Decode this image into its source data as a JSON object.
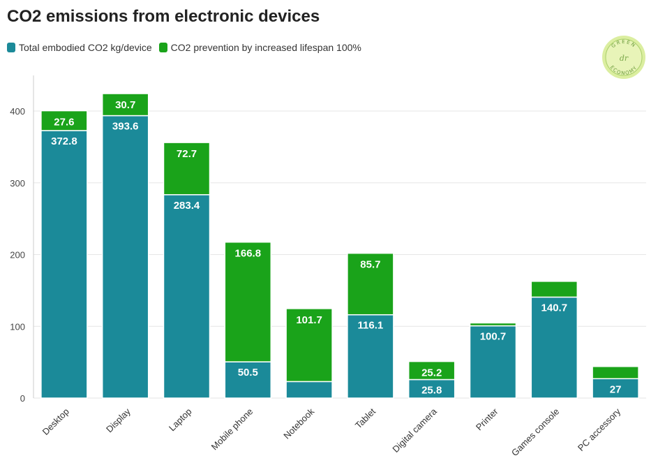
{
  "chart_data": {
    "type": "bar",
    "stacked": true,
    "title": "CO2 emissions from electronic devices",
    "categories": [
      "Desktop",
      "Display",
      "Laptop",
      "Mobile phone",
      "Notebook",
      "Tablet",
      "Digital camera",
      "Printer",
      "Games console",
      "PC accessory"
    ],
    "series": [
      {
        "name": "Total embodied CO2 kg/device",
        "color": "#1b8a99",
        "values": [
          372.8,
          393.6,
          283.4,
          50.5,
          23,
          116.1,
          25.8,
          100.7,
          140.7,
          27
        ],
        "labels": [
          "372.8",
          "393.6",
          "283.4",
          "50.5",
          "",
          "116.1",
          "25.8",
          "100.7",
          "140.7",
          "27"
        ]
      },
      {
        "name": "CO2 prevention by increased lifespan 100%",
        "color": "#1aa31a",
        "values": [
          27.6,
          30.7,
          72.7,
          166.8,
          101.7,
          85.7,
          25.2,
          4,
          22,
          17
        ],
        "labels": [
          "27.6",
          "30.7",
          "72.7",
          "166.8",
          "101.7",
          "85.7",
          "25.2",
          "",
          "",
          ""
        ]
      }
    ],
    "yticks": [
      0,
      100,
      200,
      300,
      400
    ],
    "ylim": [
      0,
      450
    ],
    "grid": true,
    "legend_position": "top-left"
  },
  "logo": {
    "text_top": "GREEN",
    "text_bottom": "ECONOMY",
    "monogram": "dr"
  }
}
